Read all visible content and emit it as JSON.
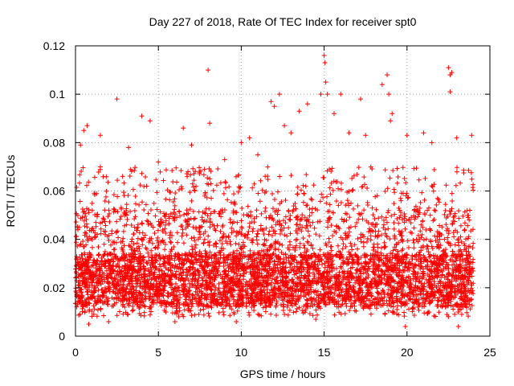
{
  "chart_data": {
    "type": "scatter",
    "title": "Day 227 of 2018, Rate Of TEC Index for receiver spt0",
    "xlabel": "GPS time / hours",
    "ylabel": "ROTI / TECUs",
    "xlim": [
      0,
      25
    ],
    "ylim": [
      0,
      0.12
    ],
    "xticks": [
      0,
      5,
      10,
      15,
      20,
      25
    ],
    "xtick_labels": [
      "0",
      "5",
      "10",
      "15",
      "20",
      "25"
    ],
    "yticks": [
      0,
      0.02,
      0.04,
      0.06,
      0.08,
      0.1,
      0.12
    ],
    "ytick_labels": [
      "0",
      "0.02",
      "0.04",
      "0.06",
      "0.08",
      "0.1",
      "0.12"
    ],
    "grid": true,
    "marker": "plus",
    "series_color": "#ff0000",
    "data_range_x": [
      0,
      24
    ],
    "series": [
      {
        "name": "ROTI",
        "points": [
          [
            0.3,
            0.079
          ],
          [
            0.5,
            0.085
          ],
          [
            0.7,
            0.087
          ],
          [
            2.5,
            0.098
          ],
          [
            4.0,
            0.091
          ],
          [
            4.5,
            0.089
          ],
          [
            6.5,
            0.086
          ],
          [
            8.0,
            0.11
          ],
          [
            8.1,
            0.088
          ],
          [
            11.8,
            0.097
          ],
          [
            12.0,
            0.095
          ],
          [
            12.3,
            0.1
          ],
          [
            12.6,
            0.087
          ],
          [
            13.5,
            0.093
          ],
          [
            14.0,
            0.096
          ],
          [
            14.8,
            0.1
          ],
          [
            15.0,
            0.116
          ],
          [
            15.05,
            0.113
          ],
          [
            15.1,
            0.105
          ],
          [
            15.2,
            0.1
          ],
          [
            15.6,
            0.092
          ],
          [
            16.0,
            0.1
          ],
          [
            17.2,
            0.098
          ],
          [
            18.5,
            0.104
          ],
          [
            18.8,
            0.108
          ],
          [
            18.9,
            0.1
          ],
          [
            19.0,
            0.089
          ],
          [
            19.1,
            0.092
          ],
          [
            22.5,
            0.111
          ],
          [
            22.6,
            0.108
          ],
          [
            22.7,
            0.109
          ],
          [
            22.6,
            0.101
          ],
          [
            23.9,
            0.083
          ],
          [
            1.5,
            0.083
          ],
          [
            3.2,
            0.078
          ],
          [
            5.0,
            0.072
          ],
          [
            7.0,
            0.079
          ],
          [
            9.0,
            0.073
          ],
          [
            10.0,
            0.08
          ],
          [
            10.5,
            0.082
          ],
          [
            11.0,
            0.075
          ],
          [
            13.0,
            0.084
          ],
          [
            16.5,
            0.084
          ],
          [
            17.5,
            0.083
          ],
          [
            20.0,
            0.083
          ],
          [
            21.0,
            0.084
          ],
          [
            21.5,
            0.08
          ],
          [
            23.0,
            0.082
          ],
          [
            0.8,
            0.005
          ],
          [
            2.0,
            0.006
          ],
          [
            9.7,
            0.006
          ],
          [
            19.9,
            0.004
          ],
          [
            23.1,
            0.004
          ],
          [
            14.5,
            0.007
          ],
          [
            6.0,
            0.006
          ]
        ]
      }
    ]
  }
}
